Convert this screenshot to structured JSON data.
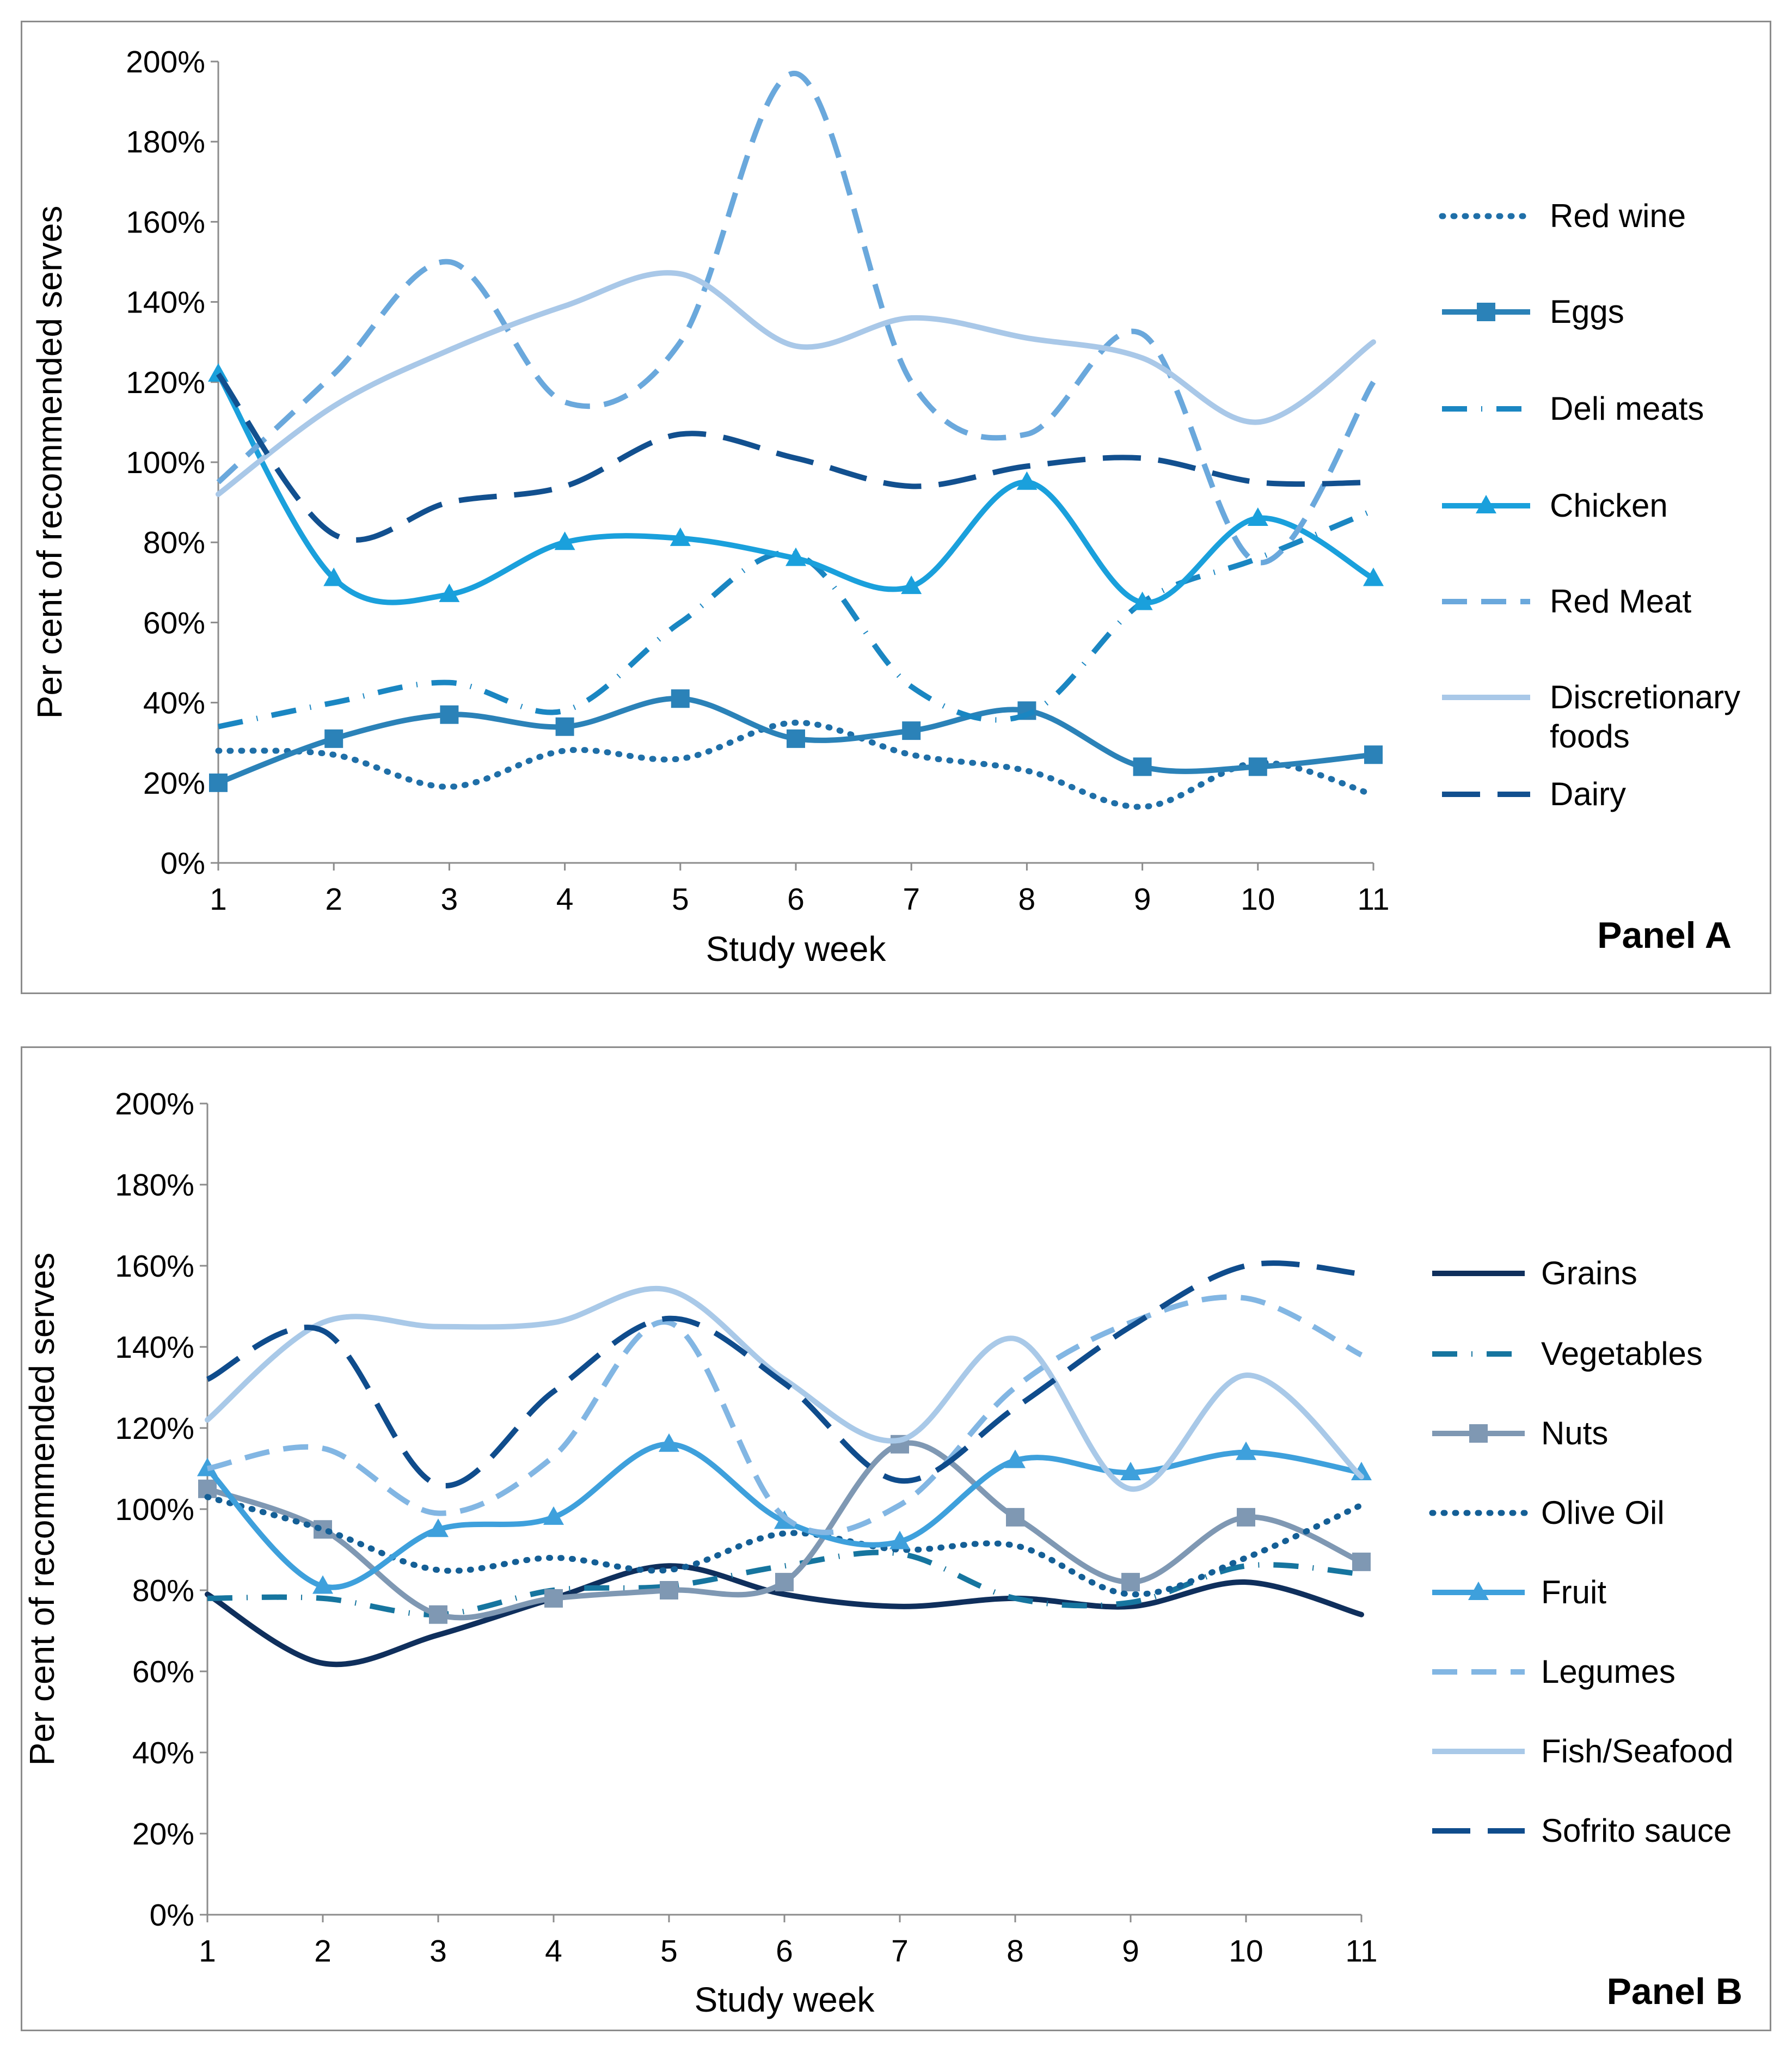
{
  "chart_data": [
    {
      "type": "line",
      "panel_label": "Panel A",
      "xlabel": "Study week",
      "ylabel": "Per cent of recommended serves",
      "ylim": [
        0,
        200
      ],
      "y_ticks": [
        "0%",
        "20%",
        "40%",
        "60%",
        "80%",
        "100%",
        "120%",
        "140%",
        "160%",
        "180%",
        "200%"
      ],
      "x": [
        1,
        2,
        3,
        4,
        5,
        6,
        7,
        8,
        9,
        10,
        11
      ],
      "series": [
        {
          "name": "Red wine",
          "color": "#1f6fa8",
          "style": "dotted",
          "marker": "none",
          "values": [
            28,
            27,
            19,
            28,
            26,
            35,
            27,
            23,
            14,
            25,
            17
          ]
        },
        {
          "name": "Eggs",
          "color": "#2b82b8",
          "style": "solid",
          "marker": "square",
          "values": [
            20,
            31,
            37,
            34,
            41,
            31,
            33,
            38,
            24,
            24,
            27
          ]
        },
        {
          "name": "Deli meats",
          "color": "#1a86c2",
          "style": "dashdot",
          "marker": "none",
          "values": [
            34,
            40,
            45,
            38,
            60,
            77,
            44,
            37,
            65,
            76,
            88
          ]
        },
        {
          "name": "Chicken",
          "color": "#1aa0dc",
          "style": "solid",
          "marker": "triangle",
          "values": [
            122,
            71,
            67,
            80,
            81,
            76,
            69,
            95,
            65,
            86,
            71
          ]
        },
        {
          "name": "Red Meat",
          "color": "#6aa8dc",
          "style": "dashed",
          "marker": "none",
          "values": [
            95,
            122,
            150,
            115,
            130,
            197,
            120,
            107,
            132,
            75,
            120
          ]
        },
        {
          "name": "Discretionary foods",
          "color": "#a9c8e8",
          "style": "solid",
          "marker": "none",
          "values": [
            92,
            114,
            128,
            139,
            147,
            129,
            136,
            131,
            126,
            110,
            130
          ]
        },
        {
          "name": "Dairy",
          "color": "#12508f",
          "style": "longdash",
          "marker": "none",
          "values": [
            122,
            82,
            90,
            94,
            107,
            101,
            94,
            99,
            101,
            95,
            95
          ]
        }
      ]
    },
    {
      "type": "line",
      "panel_label": "Panel B",
      "xlabel": "Study week",
      "ylabel": "Per cent of recommended serves",
      "ylim": [
        0,
        200
      ],
      "y_ticks": [
        "0%",
        "20%",
        "40%",
        "60%",
        "80%",
        "100%",
        "120%",
        "140%",
        "160%",
        "180%",
        "200%"
      ],
      "x": [
        1,
        2,
        3,
        4,
        5,
        6,
        7,
        8,
        9,
        10,
        11
      ],
      "series": [
        {
          "name": "Grains",
          "color": "#0f2f5c",
          "style": "solid",
          "marker": "none",
          "values": [
            79,
            62,
            69,
            78,
            86,
            79,
            76,
            78,
            76,
            82,
            74
          ]
        },
        {
          "name": "Vegetables",
          "color": "#16759f",
          "style": "dashdot",
          "marker": "none",
          "values": [
            78,
            78,
            74,
            80,
            81,
            86,
            89,
            78,
            77,
            86,
            84
          ]
        },
        {
          "name": "Nuts",
          "color": "#7f98b3",
          "style": "solid",
          "marker": "square",
          "values": [
            105,
            95,
            74,
            78,
            80,
            82,
            116,
            98,
            82,
            98,
            87
          ]
        },
        {
          "name": "Olive Oil",
          "color": "#145f96",
          "style": "dotted",
          "marker": "none",
          "values": [
            103,
            95,
            85,
            88,
            85,
            94,
            90,
            91,
            79,
            88,
            101
          ]
        },
        {
          "name": "Fruit",
          "color": "#3ea0dc",
          "style": "solid",
          "marker": "triangle",
          "values": [
            110,
            81,
            95,
            98,
            116,
            97,
            92,
            112,
            109,
            114,
            109
          ]
        },
        {
          "name": "Legumes",
          "color": "#82b6e3",
          "style": "dashed",
          "marker": "none",
          "values": [
            110,
            115,
            99,
            113,
            146,
            98,
            101,
            130,
            146,
            152,
            138
          ]
        },
        {
          "name": "Fish/Seafood",
          "color": "#a9c9e8",
          "style": "solid",
          "marker": "none",
          "values": [
            122,
            146,
            145,
            146,
            154,
            132,
            117,
            142,
            105,
            133,
            108
          ]
        },
        {
          "name": "Sofrito sauce",
          "color": "#0f4c8c",
          "style": "longdash",
          "marker": "none",
          "values": [
            132,
            144,
            106,
            129,
            147,
            131,
            107,
            125,
            145,
            160,
            158
          ]
        }
      ]
    }
  ]
}
